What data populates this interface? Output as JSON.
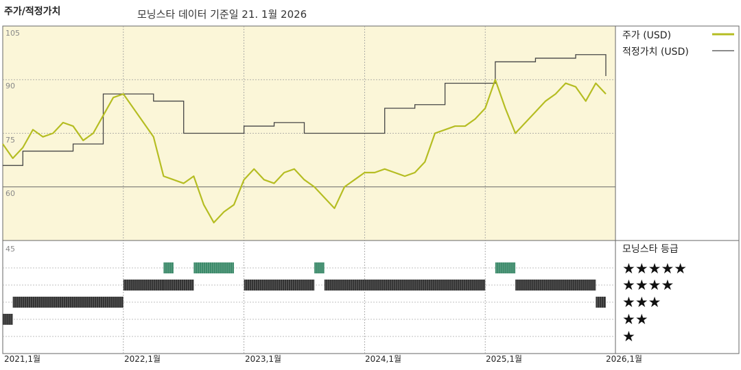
{
  "header": {
    "title": "주가/적정가치",
    "subtitle": "모닝스타 데이터 기준일 21. 1월 2026"
  },
  "chart_data": {
    "type": "line",
    "title": "주가/적정가치",
    "price_chart": {
      "y_ticks": [
        "105",
        "90",
        "75",
        "60"
      ],
      "ylim": [
        45,
        105
      ],
      "x_start": "2021-01",
      "x_end": "2026-01-21",
      "legend": [
        {
          "label": "주가 (USD)",
          "color": "#b5bd22"
        },
        {
          "label": "적정가치 (USD)",
          "color": "#444444"
        }
      ],
      "series": [
        {
          "name": "주가 (USD)",
          "color": "#b5bd22",
          "x": [
            "2021-01",
            "2021-02",
            "2021-03",
            "2021-04",
            "2021-05",
            "2021-06",
            "2021-07",
            "2021-08",
            "2021-09",
            "2021-10",
            "2021-11",
            "2021-12",
            "2022-01",
            "2022-02",
            "2022-03",
            "2022-04",
            "2022-05",
            "2022-06",
            "2022-07",
            "2022-08",
            "2022-09",
            "2022-10",
            "2022-11",
            "2022-12",
            "2023-01",
            "2023-02",
            "2023-03",
            "2023-04",
            "2023-05",
            "2023-06",
            "2023-07",
            "2023-08",
            "2023-09",
            "2023-10",
            "2023-11",
            "2023-12",
            "2024-01",
            "2024-02",
            "2024-03",
            "2024-04",
            "2024-05",
            "2024-06",
            "2024-07",
            "2024-08",
            "2024-09",
            "2024-10",
            "2024-11",
            "2024-12",
            "2025-01",
            "2025-02",
            "2025-03",
            "2025-04",
            "2025-05",
            "2025-06",
            "2025-07",
            "2025-08",
            "2025-09",
            "2025-10",
            "2025-11",
            "2025-12",
            "2026-01"
          ],
          "values": [
            72,
            68,
            71,
            76,
            74,
            75,
            78,
            77,
            73,
            75,
            80,
            85,
            86,
            82,
            78,
            74,
            63,
            62,
            61,
            63,
            55,
            50,
            53,
            55,
            62,
            65,
            62,
            61,
            64,
            65,
            62,
            60,
            57,
            54,
            60,
            62,
            64,
            64,
            65,
            64,
            63,
            64,
            67,
            75,
            76,
            77,
            77,
            79,
            82,
            90,
            82,
            75,
            78,
            81,
            84,
            86,
            89,
            88,
            84,
            89,
            86
          ],
          "visible_labels": []
        },
        {
          "name": "적정가치 (USD)",
          "color": "#444444",
          "x": [
            "2021-01",
            "2021-03",
            "2021-05",
            "2021-08",
            "2021-11",
            "2022-01",
            "2022-04",
            "2022-07",
            "2022-10",
            "2022-12",
            "2023-01",
            "2023-04",
            "2023-07",
            "2023-10",
            "2024-01",
            "2024-03",
            "2024-06",
            "2024-09",
            "2024-12",
            "2025-02",
            "2025-06",
            "2025-10",
            "2025-12",
            "2026-01"
          ],
          "values": [
            66,
            70,
            70,
            72,
            86,
            86,
            84,
            75,
            75,
            75,
            77,
            78,
            75,
            75,
            75,
            82,
            83,
            89,
            89,
            95,
            96,
            97,
            97,
            91
          ],
          "visible_labels": []
        }
      ]
    },
    "rating_chart": {
      "title": "모닝스타 등급",
      "y_tick": "45",
      "levels": [
        "★★★★★",
        "★★★★",
        "★★★",
        "★★",
        "★"
      ],
      "level_colors": {
        "5": "#3c8a6a",
        "4": "#333333",
        "3": "#333333",
        "2": "#333333",
        "1": "#333333"
      },
      "segments": [
        {
          "start": "2021-01",
          "end": "2021-02",
          "stars": 2
        },
        {
          "start": "2021-02",
          "end": "2022-01",
          "stars": 3
        },
        {
          "start": "2022-01",
          "end": "2022-05",
          "stars": 4
        },
        {
          "start": "2022-05",
          "end": "2022-06",
          "stars": 5
        },
        {
          "start": "2022-05",
          "end": "2022-08",
          "stars": 4
        },
        {
          "start": "2022-08",
          "end": "2022-12",
          "stars": 5
        },
        {
          "start": "2023-01",
          "end": "2023-08",
          "stars": 4
        },
        {
          "start": "2023-08",
          "end": "2023-09",
          "stars": 5
        },
        {
          "start": "2023-09",
          "end": "2025-01",
          "stars": 4
        },
        {
          "start": "2025-02",
          "end": "2025-04",
          "stars": 5
        },
        {
          "start": "2025-04",
          "end": "2025-12",
          "stars": 4
        },
        {
          "start": "2025-12",
          "end": "2026-01",
          "stars": 3
        }
      ]
    },
    "x_ticks": [
      "2021,1월",
      "2022,1월",
      "2023,1월",
      "2024,1월",
      "2025,1월",
      "2026,1월"
    ]
  },
  "colors": {
    "price_panel_bg": "#fbf6d8",
    "price_line": "#b5bd22",
    "fair_value_line": "#444444",
    "five_star": "#3c8a6a",
    "bars": "#333333"
  }
}
